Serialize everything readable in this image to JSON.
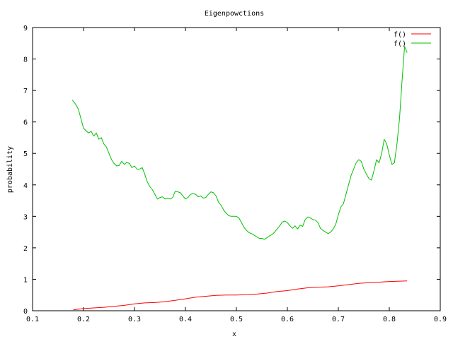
{
  "chart_data": {
    "type": "line",
    "title": "Eigenpowctions",
    "xlabel": "x",
    "ylabel": "probability",
    "xlim": [
      0.1,
      0.9
    ],
    "ylim": [
      0,
      9
    ],
    "x_ticks": [
      "0.1",
      "0.2",
      "0.3",
      "0.4",
      "0.5",
      "0.6",
      "0.7",
      "0.8",
      "0.9"
    ],
    "y_ticks": [
      "0",
      "1",
      "2",
      "3",
      "4",
      "5",
      "6",
      "7",
      "8",
      "9"
    ],
    "grid": false,
    "legend_position": "top-right",
    "series": [
      {
        "name": "f()",
        "color": "#ff0000",
        "points": [
          [
            0.18,
            0.03
          ],
          [
            0.2,
            0.07
          ],
          [
            0.22,
            0.09
          ],
          [
            0.24,
            0.11
          ],
          [
            0.26,
            0.14
          ],
          [
            0.28,
            0.17
          ],
          [
            0.3,
            0.22
          ],
          [
            0.32,
            0.25
          ],
          [
            0.34,
            0.26
          ],
          [
            0.36,
            0.29
          ],
          [
            0.38,
            0.33
          ],
          [
            0.4,
            0.38
          ],
          [
            0.42,
            0.43
          ],
          [
            0.44,
            0.46
          ],
          [
            0.46,
            0.49
          ],
          [
            0.48,
            0.5
          ],
          [
            0.5,
            0.5
          ],
          [
            0.52,
            0.51
          ],
          [
            0.54,
            0.53
          ],
          [
            0.56,
            0.56
          ],
          [
            0.58,
            0.61
          ],
          [
            0.6,
            0.64
          ],
          [
            0.62,
            0.69
          ],
          [
            0.64,
            0.73
          ],
          [
            0.66,
            0.75
          ],
          [
            0.68,
            0.76
          ],
          [
            0.7,
            0.79
          ],
          [
            0.72,
            0.83
          ],
          [
            0.74,
            0.87
          ],
          [
            0.76,
            0.89
          ],
          [
            0.78,
            0.91
          ],
          [
            0.8,
            0.93
          ],
          [
            0.82,
            0.94
          ],
          [
            0.835,
            0.95
          ]
        ]
      },
      {
        "name": "f()",
        "color": "#00c000",
        "points": [
          [
            0.178,
            6.7
          ],
          [
            0.185,
            6.55
          ],
          [
            0.19,
            6.4
          ],
          [
            0.195,
            6.1
          ],
          [
            0.2,
            5.8
          ],
          [
            0.205,
            5.72
          ],
          [
            0.21,
            5.65
          ],
          [
            0.215,
            5.7
          ],
          [
            0.22,
            5.55
          ],
          [
            0.225,
            5.65
          ],
          [
            0.23,
            5.45
          ],
          [
            0.235,
            5.5
          ],
          [
            0.24,
            5.3
          ],
          [
            0.245,
            5.2
          ],
          [
            0.25,
            5.0
          ],
          [
            0.255,
            4.8
          ],
          [
            0.26,
            4.68
          ],
          [
            0.265,
            4.6
          ],
          [
            0.27,
            4.62
          ],
          [
            0.275,
            4.75
          ],
          [
            0.28,
            4.65
          ],
          [
            0.285,
            4.72
          ],
          [
            0.29,
            4.68
          ],
          [
            0.295,
            4.55
          ],
          [
            0.3,
            4.6
          ],
          [
            0.305,
            4.5
          ],
          [
            0.31,
            4.5
          ],
          [
            0.315,
            4.55
          ],
          [
            0.32,
            4.35
          ],
          [
            0.325,
            4.1
          ],
          [
            0.33,
            3.95
          ],
          [
            0.335,
            3.85
          ],
          [
            0.34,
            3.7
          ],
          [
            0.345,
            3.55
          ],
          [
            0.35,
            3.6
          ],
          [
            0.355,
            3.62
          ],
          [
            0.36,
            3.55
          ],
          [
            0.365,
            3.58
          ],
          [
            0.37,
            3.55
          ],
          [
            0.375,
            3.6
          ],
          [
            0.38,
            3.8
          ],
          [
            0.385,
            3.78
          ],
          [
            0.39,
            3.75
          ],
          [
            0.395,
            3.65
          ],
          [
            0.4,
            3.55
          ],
          [
            0.405,
            3.6
          ],
          [
            0.41,
            3.7
          ],
          [
            0.415,
            3.72
          ],
          [
            0.42,
            3.7
          ],
          [
            0.425,
            3.62
          ],
          [
            0.43,
            3.65
          ],
          [
            0.435,
            3.58
          ],
          [
            0.44,
            3.6
          ],
          [
            0.445,
            3.7
          ],
          [
            0.45,
            3.78
          ],
          [
            0.455,
            3.75
          ],
          [
            0.46,
            3.65
          ],
          [
            0.465,
            3.45
          ],
          [
            0.47,
            3.35
          ],
          [
            0.475,
            3.2
          ],
          [
            0.48,
            3.1
          ],
          [
            0.485,
            3.02
          ],
          [
            0.49,
            3.0
          ],
          [
            0.5,
            3.0
          ],
          [
            0.505,
            2.95
          ],
          [
            0.51,
            2.8
          ],
          [
            0.515,
            2.65
          ],
          [
            0.52,
            2.55
          ],
          [
            0.525,
            2.48
          ],
          [
            0.53,
            2.45
          ],
          [
            0.535,
            2.4
          ],
          [
            0.54,
            2.35
          ],
          [
            0.545,
            2.3
          ],
          [
            0.55,
            2.3
          ],
          [
            0.555,
            2.27
          ],
          [
            0.56,
            2.32
          ],
          [
            0.565,
            2.38
          ],
          [
            0.57,
            2.42
          ],
          [
            0.575,
            2.5
          ],
          [
            0.58,
            2.6
          ],
          [
            0.585,
            2.7
          ],
          [
            0.59,
            2.82
          ],
          [
            0.595,
            2.85
          ],
          [
            0.6,
            2.8
          ],
          [
            0.605,
            2.7
          ],
          [
            0.61,
            2.62
          ],
          [
            0.615,
            2.7
          ],
          [
            0.62,
            2.6
          ],
          [
            0.625,
            2.72
          ],
          [
            0.63,
            2.68
          ],
          [
            0.635,
            2.9
          ],
          [
            0.64,
            2.98
          ],
          [
            0.645,
            2.95
          ],
          [
            0.65,
            2.9
          ],
          [
            0.655,
            2.88
          ],
          [
            0.66,
            2.8
          ],
          [
            0.665,
            2.62
          ],
          [
            0.67,
            2.55
          ],
          [
            0.675,
            2.5
          ],
          [
            0.68,
            2.45
          ],
          [
            0.685,
            2.5
          ],
          [
            0.69,
            2.6
          ],
          [
            0.695,
            2.75
          ],
          [
            0.7,
            3.05
          ],
          [
            0.705,
            3.3
          ],
          [
            0.71,
            3.4
          ],
          [
            0.715,
            3.7
          ],
          [
            0.72,
            4.0
          ],
          [
            0.725,
            4.3
          ],
          [
            0.73,
            4.5
          ],
          [
            0.735,
            4.7
          ],
          [
            0.74,
            4.8
          ],
          [
            0.745,
            4.75
          ],
          [
            0.75,
            4.5
          ],
          [
            0.755,
            4.35
          ],
          [
            0.76,
            4.2
          ],
          [
            0.765,
            4.15
          ],
          [
            0.77,
            4.45
          ],
          [
            0.775,
            4.8
          ],
          [
            0.78,
            4.7
          ],
          [
            0.785,
            5.0
          ],
          [
            0.79,
            5.45
          ],
          [
            0.795,
            5.3
          ],
          [
            0.8,
            4.95
          ],
          [
            0.805,
            4.65
          ],
          [
            0.81,
            4.7
          ],
          [
            0.815,
            5.3
          ],
          [
            0.82,
            6.1
          ],
          [
            0.825,
            7.3
          ],
          [
            0.83,
            8.4
          ],
          [
            0.835,
            8.2
          ]
        ]
      }
    ]
  }
}
